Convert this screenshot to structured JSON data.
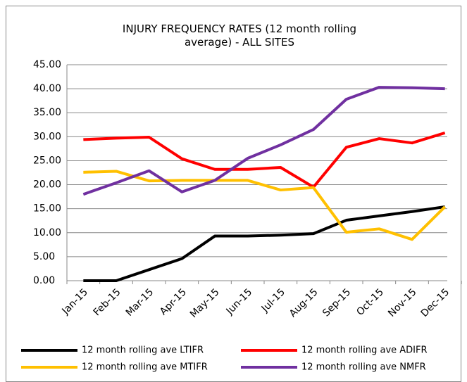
{
  "chart_data": {
    "type": "line",
    "title": "INJURY FREQUENCY RATES (12 month rolling average) - ALL SITES",
    "categories": [
      "Jan-15",
      "Feb-15",
      "Mar-15",
      "Apr-15",
      "May-15",
      "Jun-15",
      "Jul-15",
      "Aug-15",
      "Sep-15",
      "Oct-15",
      "Nov-15",
      "Dec-15"
    ],
    "series": [
      {
        "name": "12 month rolling ave LTIFR",
        "color": "#000000",
        "values": [
          0,
          0,
          2.3,
          4.6,
          9.3,
          9.3,
          9.5,
          9.8,
          12.6,
          13.5,
          14.4,
          15.4
        ]
      },
      {
        "name": "12 month rolling ave ADIFR",
        "color": "#ff0000",
        "values": [
          29.4,
          29.7,
          29.9,
          25.4,
          23.2,
          23.2,
          23.6,
          19.5,
          27.8,
          29.6,
          28.7,
          30.8
        ]
      },
      {
        "name": "12 month rolling ave MTIFR",
        "color": "#ffc000",
        "values": [
          22.6,
          22.8,
          20.8,
          20.9,
          20.9,
          20.9,
          18.9,
          19.4,
          10.1,
          10.8,
          8.6,
          15.4
        ]
      },
      {
        "name": "12 month rolling ave NMFR",
        "color": "#7030a0",
        "values": [
          18.0,
          20.4,
          22.9,
          18.5,
          20.9,
          25.5,
          28.3,
          31.5,
          37.8,
          40.3,
          40.2,
          40.0
        ]
      }
    ],
    "ylim": [
      0,
      45
    ],
    "yticks": [
      {
        "value": 0,
        "label": "0.00"
      },
      {
        "value": 5,
        "label": "5.00"
      },
      {
        "value": 10,
        "label": "10.00"
      },
      {
        "value": 15,
        "label": "15.00"
      },
      {
        "value": 20,
        "label": "20.00"
      },
      {
        "value": 25,
        "label": "25.00"
      },
      {
        "value": 30,
        "label": "30.00"
      },
      {
        "value": 35,
        "label": "35.00"
      },
      {
        "value": 40,
        "label": "40.00"
      },
      {
        "value": 45,
        "label": "45.00"
      }
    ],
    "grid": true
  }
}
